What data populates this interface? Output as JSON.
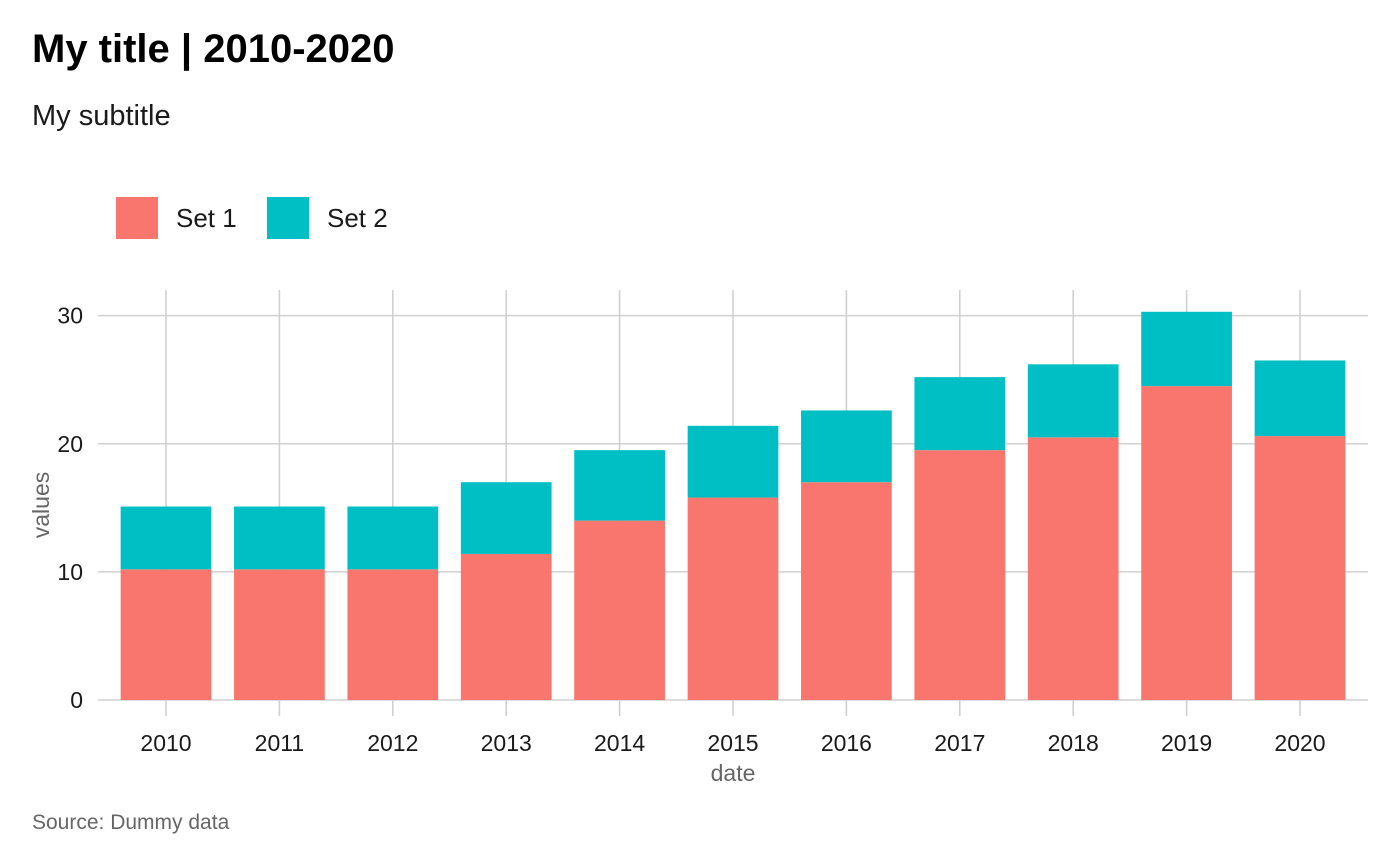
{
  "chart_data": {
    "type": "bar",
    "stacked": true,
    "title": "My title | 2010-2020",
    "subtitle": "My subtitle",
    "caption": "Source: Dummy data",
    "xlabel": "date",
    "ylabel": "values",
    "categories": [
      "2010",
      "2011",
      "2012",
      "2013",
      "2014",
      "2015",
      "2016",
      "2017",
      "2018",
      "2019",
      "2020"
    ],
    "series": [
      {
        "name": "Set 1",
        "color": "#F8766D",
        "values": [
          10.2,
          10.2,
          10.2,
          11.4,
          14.0,
          15.8,
          17.0,
          19.5,
          20.5,
          24.5,
          20.6
        ]
      },
      {
        "name": "Set 2",
        "color": "#00BFC4",
        "values": [
          4.9,
          4.9,
          4.9,
          5.6,
          5.5,
          5.6,
          5.6,
          5.7,
          5.7,
          5.8,
          5.9
        ]
      }
    ],
    "yticks": [
      0,
      10,
      20,
      30
    ],
    "ylim": [
      0,
      32
    ],
    "grid": true,
    "legend_position": "top-left"
  }
}
